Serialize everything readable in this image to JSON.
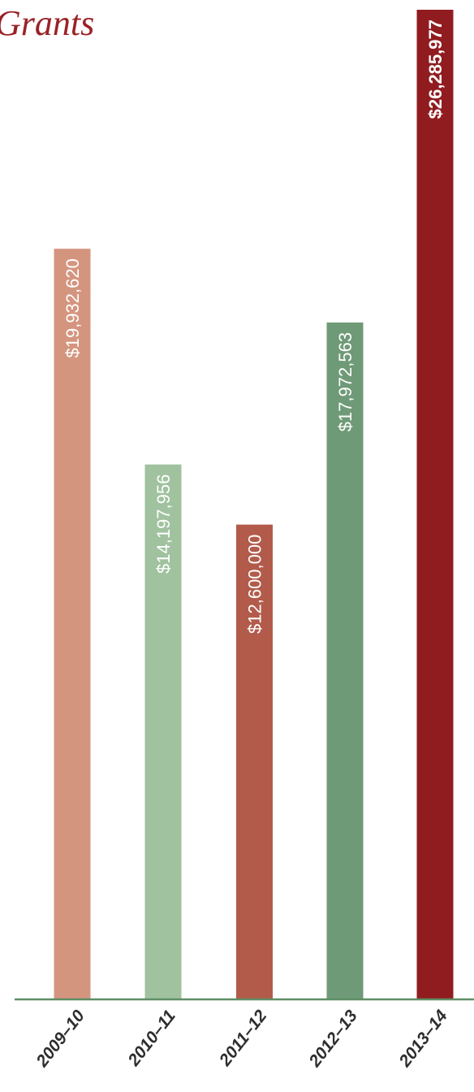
{
  "chart_data": {
    "type": "bar",
    "title": "Grants",
    "categories": [
      "2009–10",
      "2010–11",
      "2011–12",
      "2012–13",
      "2013–14"
    ],
    "values": [
      19932620,
      14197956,
      12600000,
      17972563,
      26285977
    ],
    "value_labels": [
      "$19,932,620",
      "$14,197,956",
      "$12,600,000",
      "$17,972,563",
      "$26,285,977"
    ],
    "colors": [
      "#d4957f",
      "#a0c29f",
      "#b25b4a",
      "#6f9a77",
      "#901c1f"
    ],
    "axis_color": "#5e8f66",
    "emphasized_index": 4,
    "ylim": [
      0,
      26285977
    ],
    "grid": false
  }
}
